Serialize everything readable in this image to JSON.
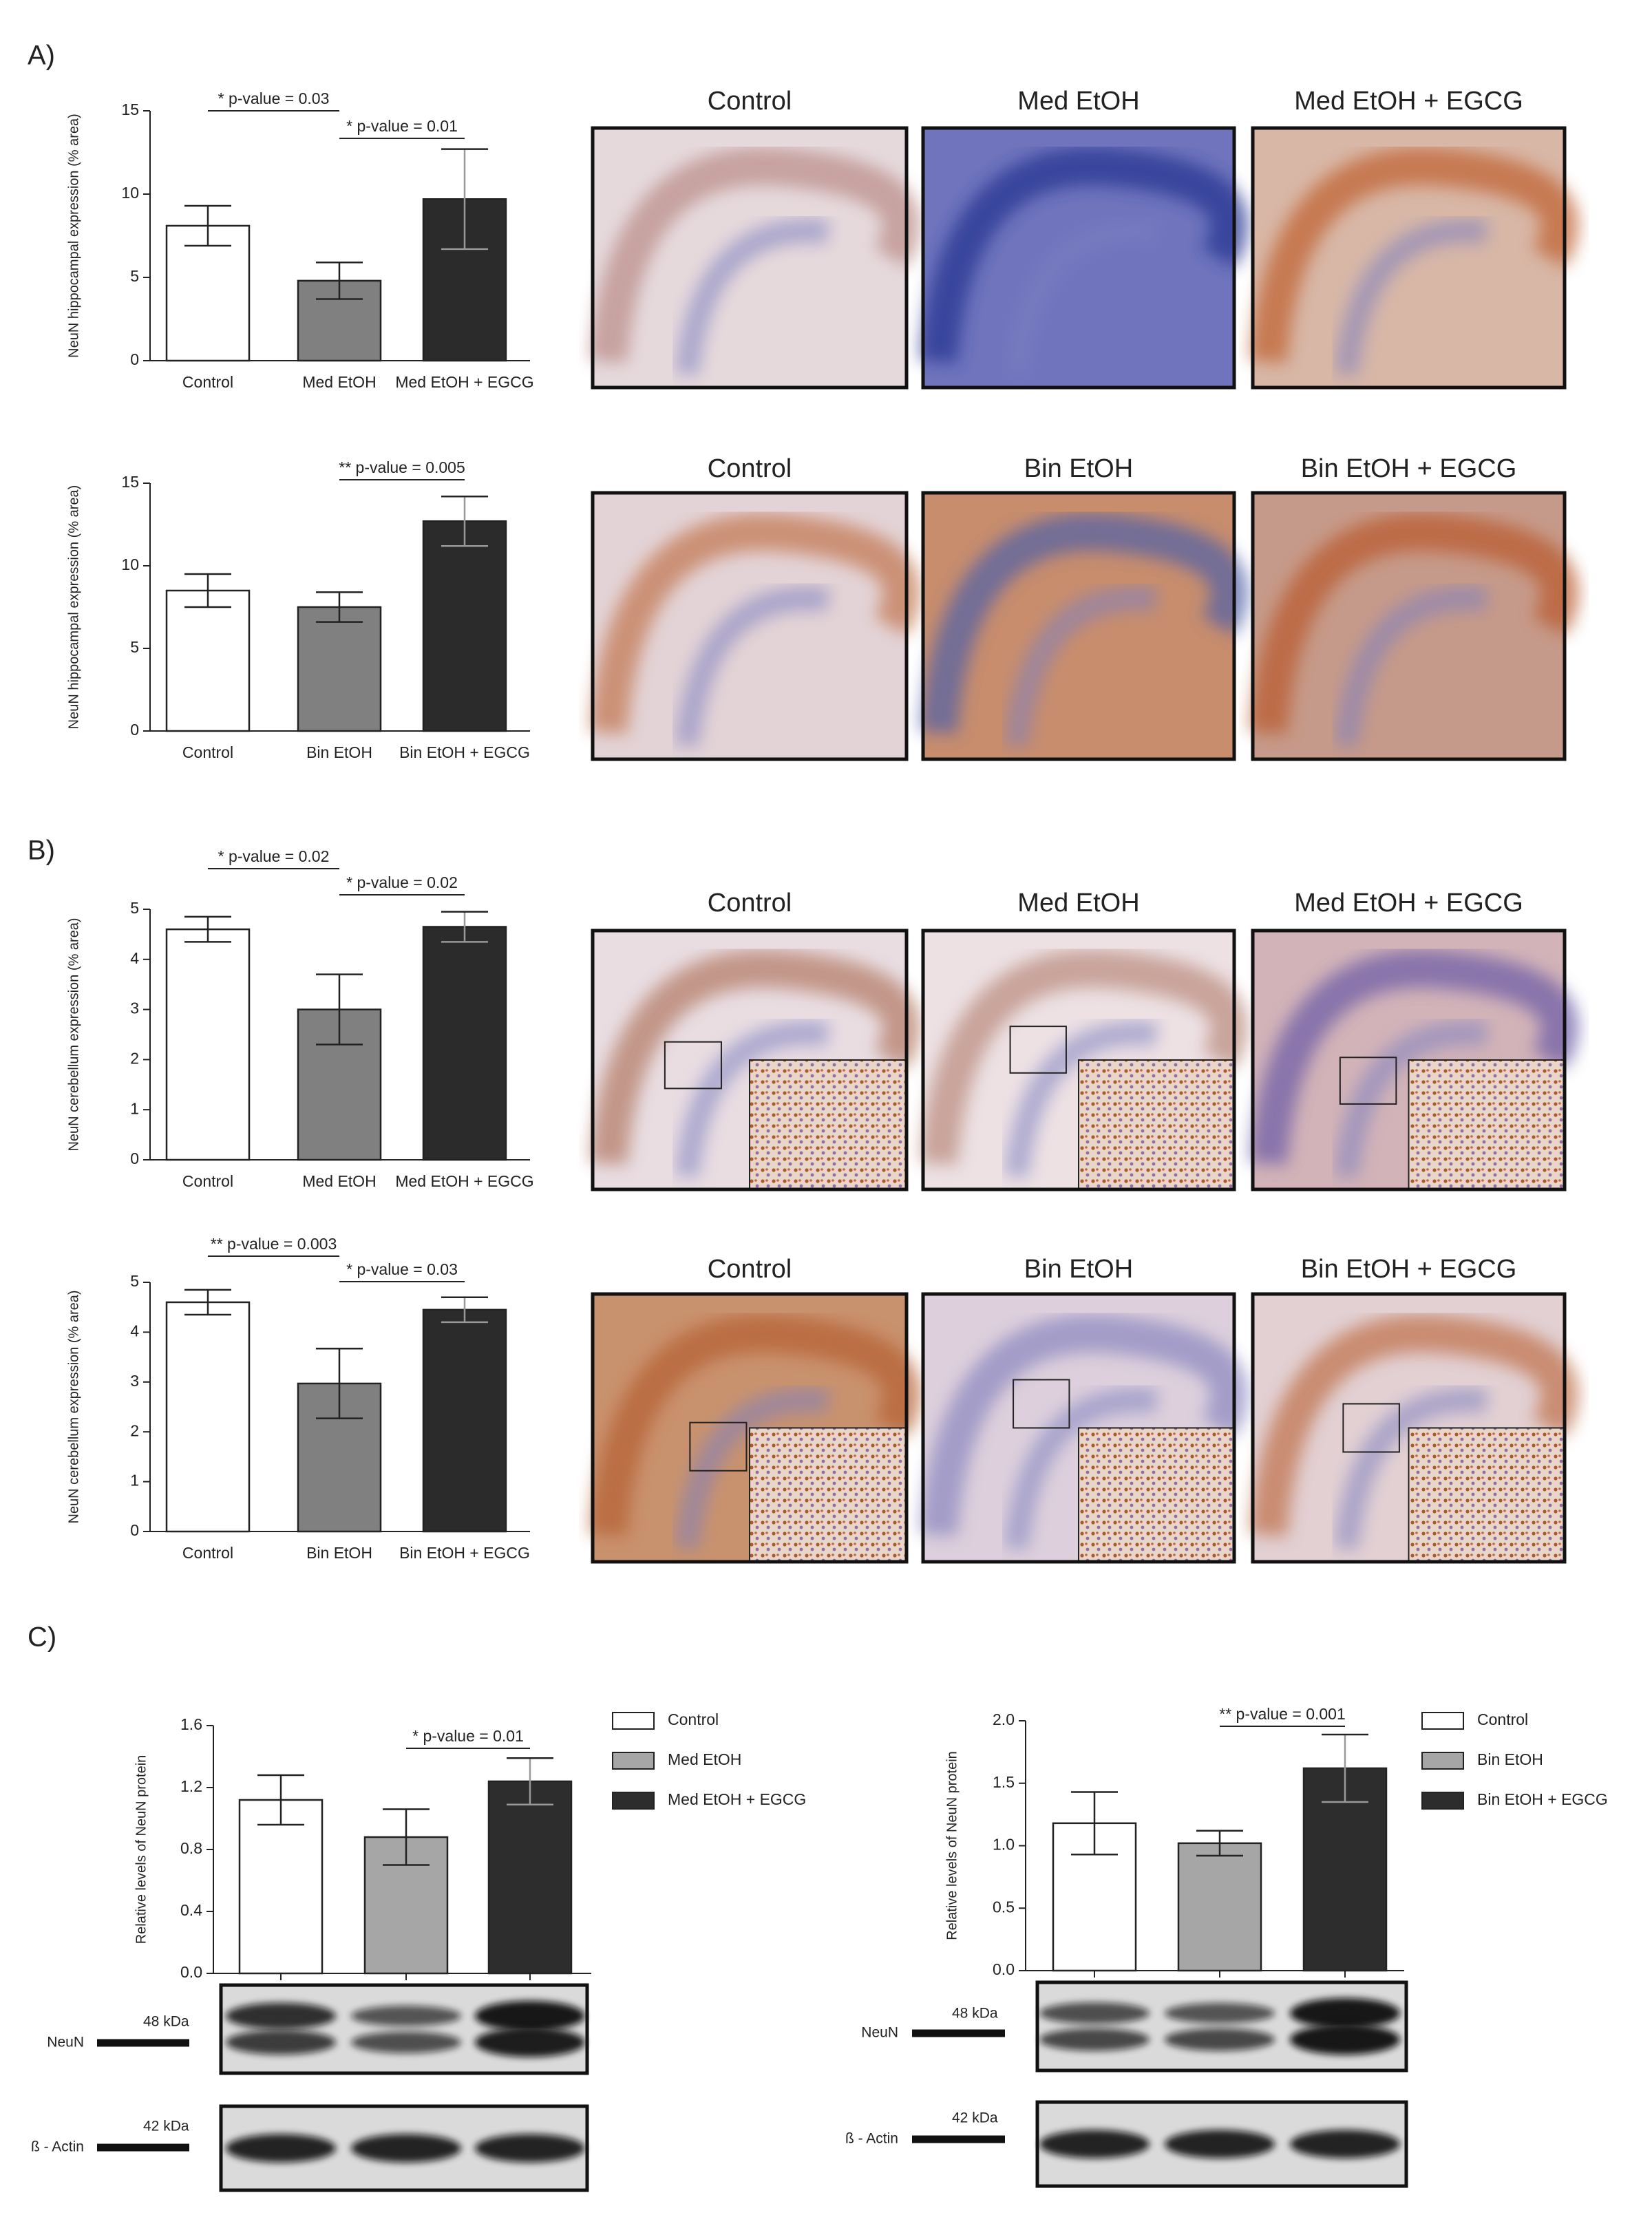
{
  "panel_labels": [
    "A)",
    "B)",
    "C)"
  ],
  "micrographs": [
    [
      "Control",
      "Med EtOH",
      "Med EtOH + EGCG"
    ],
    [
      "Control",
      "Bin EtOH",
      "Bin EtOH + EGCG"
    ],
    [
      "Control",
      "Med EtOH",
      "Med EtOH + EGCG"
    ],
    [
      "Control",
      "Bin EtOH",
      "Bin EtOH + EGCG"
    ]
  ],
  "blots": [
    {
      "bands": [
        {
          "name": "NeuN",
          "size": "48 kDa"
        },
        {
          "name": "ß - Actin",
          "size": "42 kDa"
        }
      ]
    },
    {
      "bands": [
        {
          "name": "NeuN",
          "size": "48 kDa"
        },
        {
          "name": "ß - Actin",
          "size": "42 kDa"
        }
      ]
    }
  ],
  "chart_data": [
    {
      "type": "bar",
      "y_label": "NeuN hippocampal expression (% area)",
      "categories": [
        "Control",
        "Med EtOH",
        "Med EtOH + EGCG"
      ],
      "values": [
        8.1,
        4.8,
        9.7
      ],
      "errors": [
        1.2,
        1.1,
        3.0
      ],
      "colors": [
        "#ffffff",
        "#808080",
        "#2b2b2b"
      ],
      "ylim": [
        0,
        15
      ],
      "yticks": [
        0,
        5,
        10,
        15
      ],
      "annotations": [
        "* p-value = 0.03",
        "* p-value = 0.01"
      ]
    },
    {
      "type": "bar",
      "y_label": "NeuN hippocampal expression (% area)",
      "categories": [
        "Control",
        "Bin EtOH",
        "Bin EtOH + EGCG"
      ],
      "values": [
        8.5,
        7.5,
        12.7
      ],
      "errors": [
        1.0,
        0.9,
        1.5
      ],
      "colors": [
        "#ffffff",
        "#808080",
        "#2b2b2b"
      ],
      "ylim": [
        0,
        15
      ],
      "yticks": [
        0,
        5,
        10,
        15
      ],
      "annotations": [
        "** p-value = 0.005"
      ]
    },
    {
      "type": "bar",
      "y_label": "NeuN cerebellum expression (% area)",
      "categories": [
        "Control",
        "Med EtOH",
        "Med EtOH + EGCG"
      ],
      "values": [
        4.6,
        3.0,
        4.65
      ],
      "errors": [
        0.25,
        0.7,
        0.3
      ],
      "colors": [
        "#ffffff",
        "#808080",
        "#2b2b2b"
      ],
      "ylim": [
        0,
        5
      ],
      "yticks": [
        0,
        1,
        2,
        3,
        4,
        5
      ],
      "annotations": [
        "* p-value = 0.02",
        "* p-value = 0.02"
      ]
    },
    {
      "type": "bar",
      "y_label": "NeuN cerebellum expression (% area)",
      "categories": [
        "Control",
        "Bin EtOH",
        "Bin EtOH + EGCG"
      ],
      "values": [
        4.6,
        2.97,
        4.45
      ],
      "errors": [
        0.25,
        0.7,
        0.25
      ],
      "colors": [
        "#ffffff",
        "#808080",
        "#2b2b2b"
      ],
      "ylim": [
        0,
        5
      ],
      "yticks": [
        0,
        1,
        2,
        3,
        4,
        5
      ],
      "annotations": [
        "** p-value = 0.003",
        "* p-value = 0.03"
      ]
    },
    {
      "type": "bar",
      "y_label": "Relative levels of NeuN protein",
      "categories": [
        "Control",
        "Med EtOH",
        "Med EtOH + EGCG"
      ],
      "values": [
        1.12,
        0.88,
        1.24
      ],
      "errors": [
        0.16,
        0.18,
        0.15
      ],
      "colors": [
        "#ffffff",
        "#a6a6a6",
        "#2d2d2d"
      ],
      "ylim": [
        0,
        1.6
      ],
      "yticks": [
        {
          "value": 0,
          "label": "0.0"
        },
        0.4,
        0.8,
        1.2,
        1.6
      ],
      "annotations": [
        "* p-value = 0.01"
      ],
      "legend": "right"
    },
    {
      "type": "bar",
      "y_label": "Relative levels of NeuN protein",
      "categories": [
        "Control",
        "Bin EtOH",
        "Bin EtOH + EGCG"
      ],
      "values": [
        1.18,
        1.02,
        1.62
      ],
      "errors": [
        0.25,
        0.1,
        0.27
      ],
      "colors": [
        "#ffffff",
        "#a6a6a6",
        "#2d2d2d"
      ],
      "ylim": [
        0,
        2.0
      ],
      "yticks": [
        {
          "value": 0,
          "label": "0.0"
        },
        0.5,
        {
          "value": 1,
          "label": "1.0"
        },
        1.5,
        {
          "value": 2,
          "label": "2.0"
        }
      ],
      "annotations": [
        "** p-value = 0.001"
      ],
      "legend": "right"
    }
  ]
}
